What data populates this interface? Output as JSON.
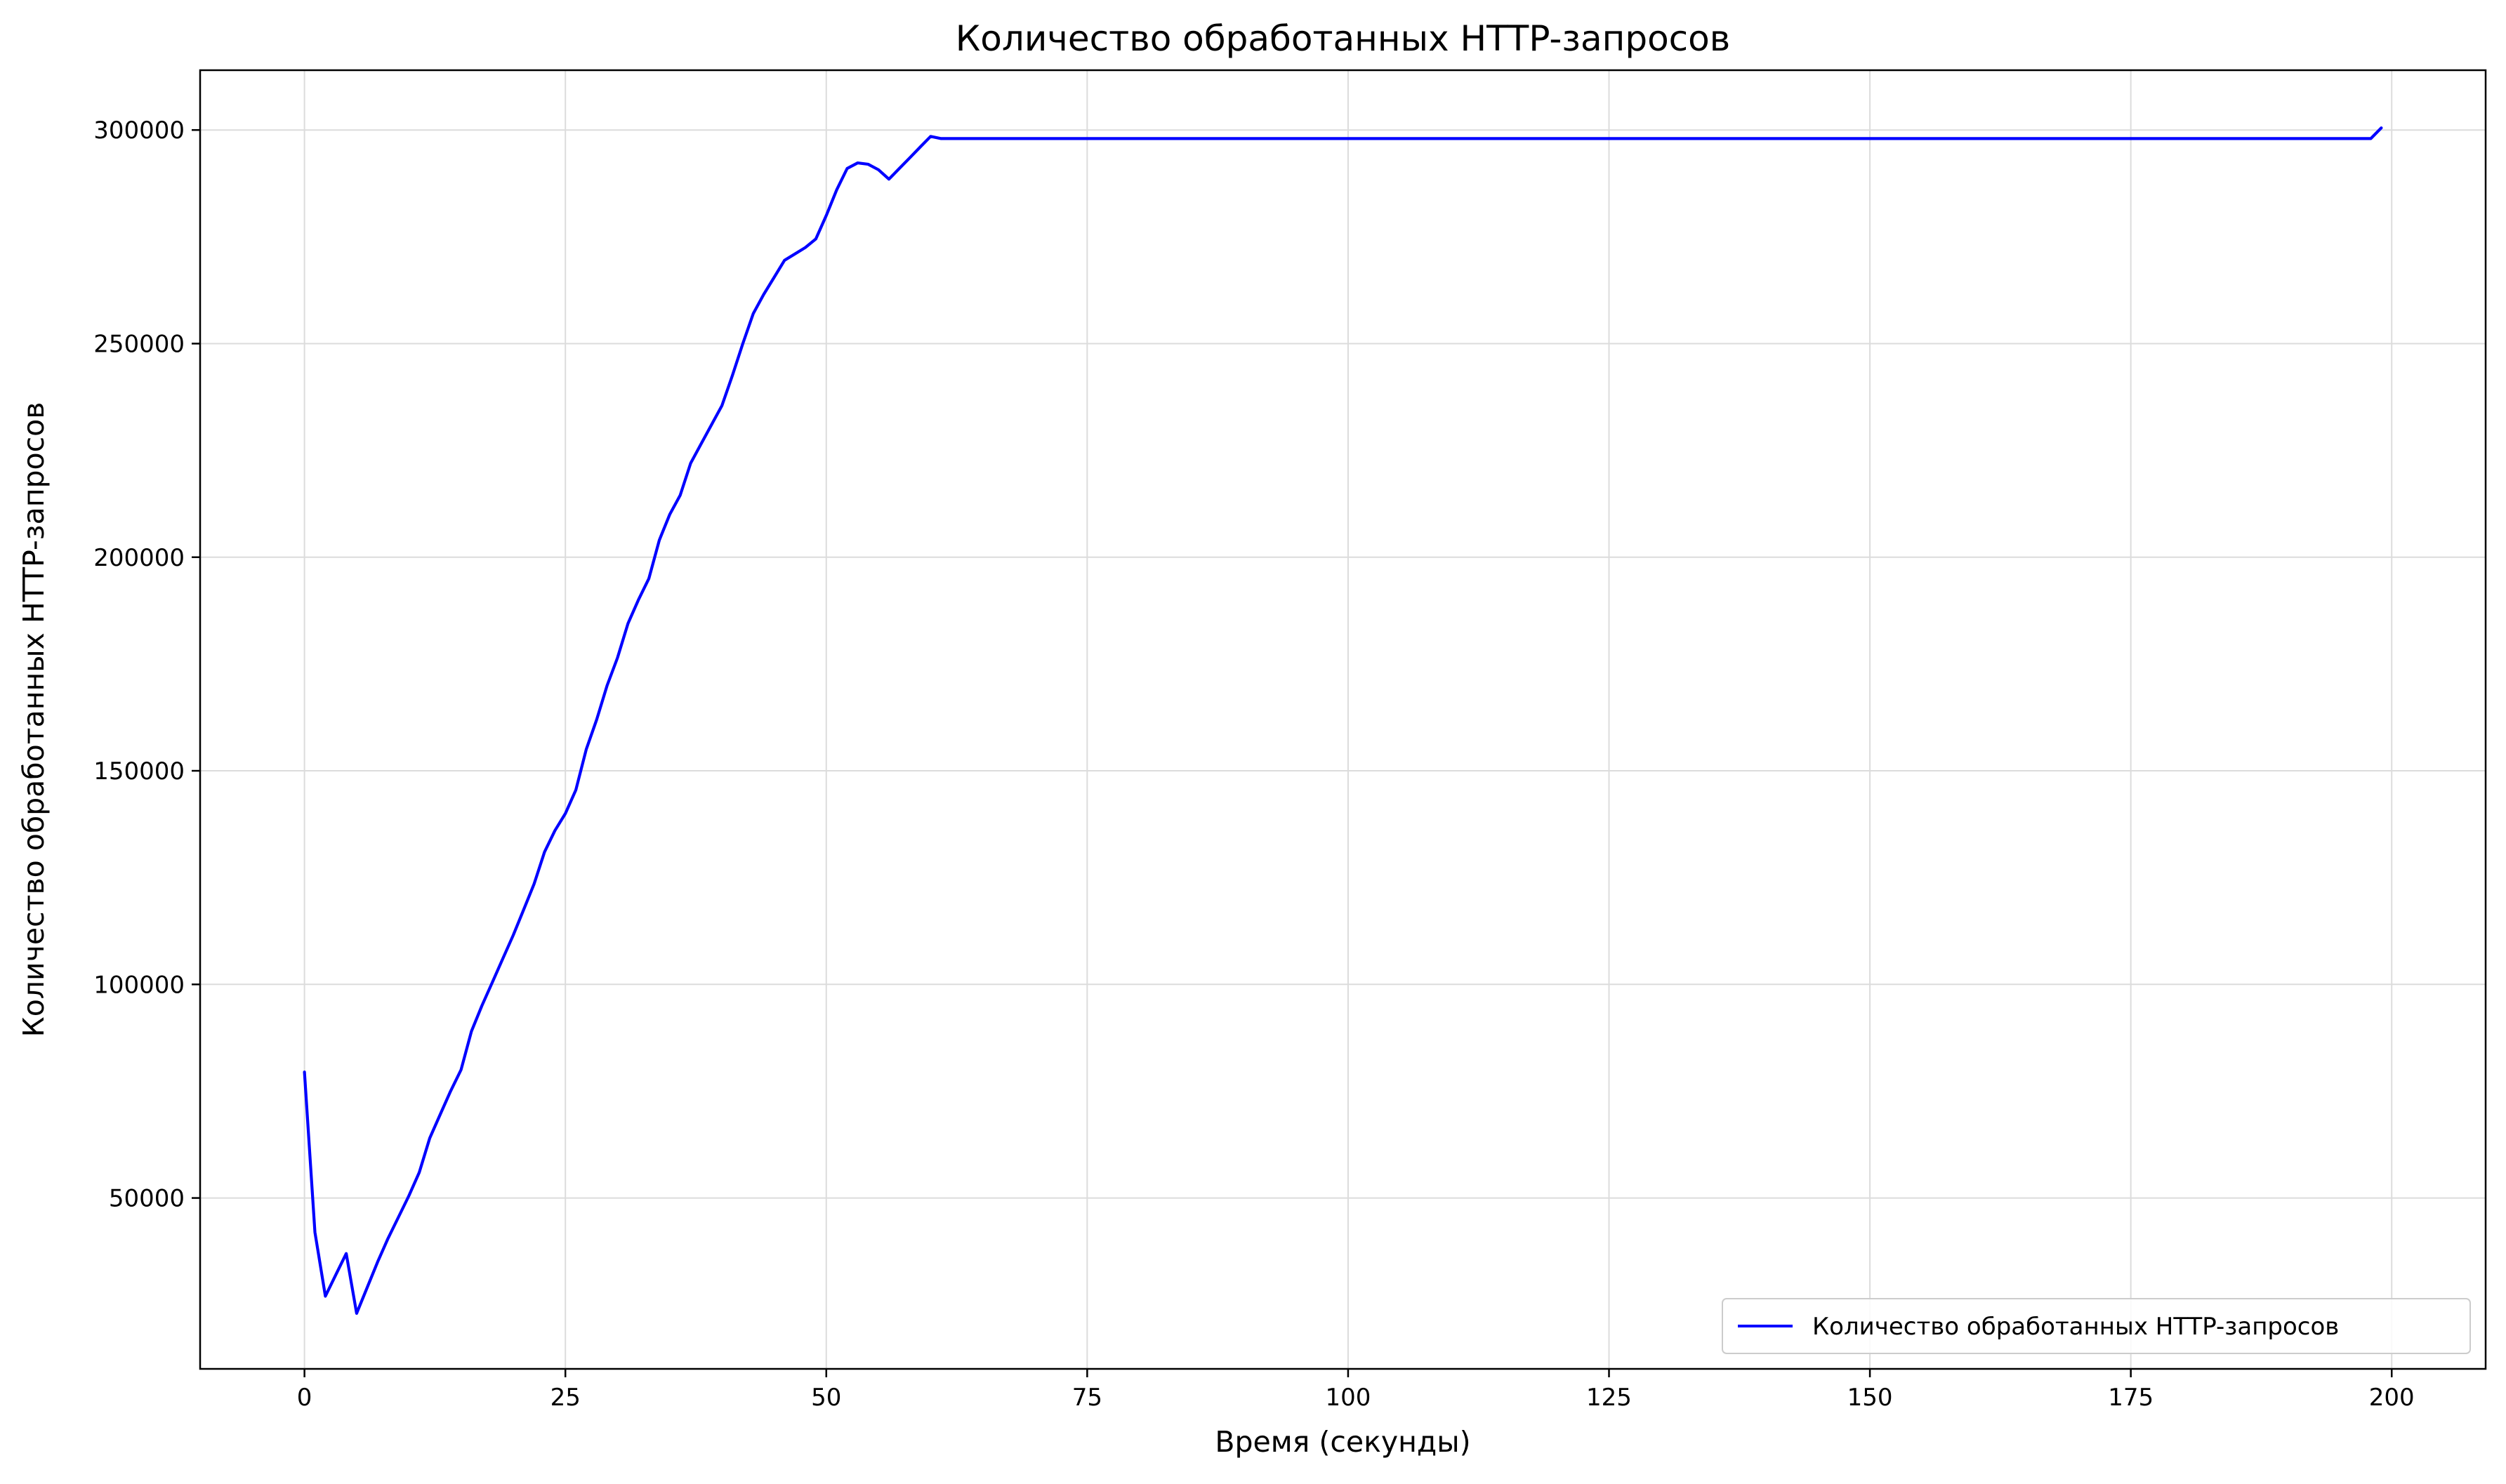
{
  "chart_data": {
    "type": "line",
    "title": "Количество обработанных HTTP-запросов",
    "xlabel": "Время (секунды)",
    "ylabel": "Количество обработанных HTTP-запросов",
    "xlim": [
      -10,
      209
    ],
    "ylim": [
      10000,
      314000
    ],
    "x_ticks": [
      0,
      25,
      50,
      75,
      100,
      125,
      150,
      175,
      200
    ],
    "y_ticks": [
      50000,
      100000,
      150000,
      200000,
      250000,
      300000
    ],
    "grid": true,
    "legend_position": "lower-right",
    "series": [
      {
        "name": "Количество обработанных HTTP-запросов",
        "color": "#0000ff",
        "points": [
          [
            0,
            79500
          ],
          [
            1,
            42000
          ],
          [
            2,
            27000
          ],
          [
            3,
            32000
          ],
          [
            4,
            37000
          ],
          [
            5,
            23000
          ],
          [
            6,
            29000
          ],
          [
            7,
            35000
          ],
          [
            8,
            40500
          ],
          [
            9,
            45500
          ],
          [
            10,
            50500
          ],
          [
            11,
            56000
          ],
          [
            12,
            64000
          ],
          [
            13,
            69500
          ],
          [
            14,
            75000
          ],
          [
            15,
            80000
          ],
          [
            16,
            89000
          ],
          [
            17,
            95000
          ],
          [
            18,
            100500
          ],
          [
            19,
            106000
          ],
          [
            20,
            111500
          ],
          [
            21,
            117500
          ],
          [
            22,
            123500
          ],
          [
            23,
            131000
          ],
          [
            24,
            136000
          ],
          [
            25,
            140000
          ],
          [
            26,
            145500
          ],
          [
            27,
            155000
          ],
          [
            28,
            162000
          ],
          [
            29,
            170000
          ],
          [
            30,
            176500
          ],
          [
            31,
            184500
          ],
          [
            32,
            190000
          ],
          [
            33,
            195000
          ],
          [
            34,
            204000
          ],
          [
            35,
            210000
          ],
          [
            36,
            214500
          ],
          [
            37,
            222000
          ],
          [
            38,
            226500
          ],
          [
            39,
            231000
          ],
          [
            40,
            235500
          ],
          [
            41,
            242500
          ],
          [
            42,
            250000
          ],
          [
            43,
            257000
          ],
          [
            44,
            261500
          ],
          [
            45,
            265500
          ],
          [
            46,
            269500
          ],
          [
            47,
            271000
          ],
          [
            48,
            272500
          ],
          [
            49,
            274500
          ],
          [
            50,
            280000
          ],
          [
            51,
            286000
          ],
          [
            52,
            291000
          ],
          [
            53,
            292300
          ],
          [
            54,
            292000
          ],
          [
            55,
            290700
          ],
          [
            56,
            288500
          ],
          [
            57,
            291000
          ],
          [
            58,
            293500
          ],
          [
            59,
            296000
          ],
          [
            60,
            298500
          ],
          [
            61,
            298000
          ],
          [
            70,
            298000
          ],
          [
            100,
            298000
          ],
          [
            150,
            298000
          ],
          [
            198,
            298000
          ],
          [
            199,
            300500
          ]
        ]
      }
    ]
  }
}
